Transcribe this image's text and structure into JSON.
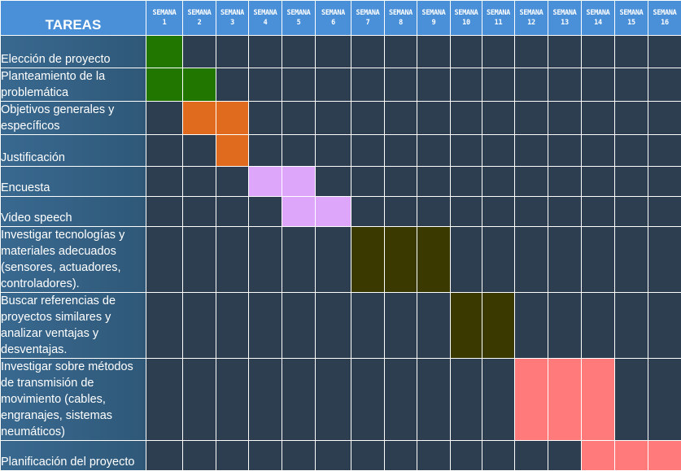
{
  "header": {
    "tasks_label": "TAREAS",
    "week_word": "SEMANA"
  },
  "weeks": [
    "1",
    "2",
    "3",
    "4",
    "5",
    "6",
    "7",
    "8",
    "9",
    "10",
    "11",
    "12",
    "13",
    "14",
    "15",
    "16"
  ],
  "colors": {
    "empty": "#2c3e50",
    "green": "#217600",
    "orange": "#e06b1f",
    "lilac": "#dda6fb",
    "olive": "#3a3a00",
    "pink": "#ff7a7a"
  },
  "tasks": [
    {
      "label": "Elección de proyecto",
      "weeks": [
        1
      ],
      "color": "green"
    },
    {
      "label": "Planteamiento de la\nproblemática",
      "weeks": [
        1,
        2
      ],
      "color": "green"
    },
    {
      "label": "Objetivos generales y\nespecíficos",
      "weeks": [
        2,
        3
      ],
      "color": "orange"
    },
    {
      "label": "Justificación",
      "weeks": [
        3
      ],
      "color": "orange"
    },
    {
      "label": "Encuesta",
      "weeks": [
        4,
        5
      ],
      "color": "lilac"
    },
    {
      "label": "Video  speech",
      "weeks": [
        5,
        6
      ],
      "color": "lilac"
    },
    {
      "label": "Investigar tecnologías y\nmateriales adecuados\n(sensores, actuadores,\ncontroladores).",
      "weeks": [
        7,
        8,
        9
      ],
      "color": "olive"
    },
    {
      "label": "Buscar referencias de\nproyectos similares y\nanalizar ventajas y\ndesventajas.",
      "weeks": [
        10,
        11
      ],
      "color": "olive"
    },
    {
      "label": "Investigar sobre métodos\nde transmisión de\nmovimiento (cables,\nengranajes, sistemas\nneumáticos)",
      "weeks": [
        12,
        13,
        14
      ],
      "color": "pink"
    },
    {
      "label": "Planificación del proyecto",
      "weeks": [
        14,
        15,
        16
      ],
      "color": "pink"
    }
  ]
}
